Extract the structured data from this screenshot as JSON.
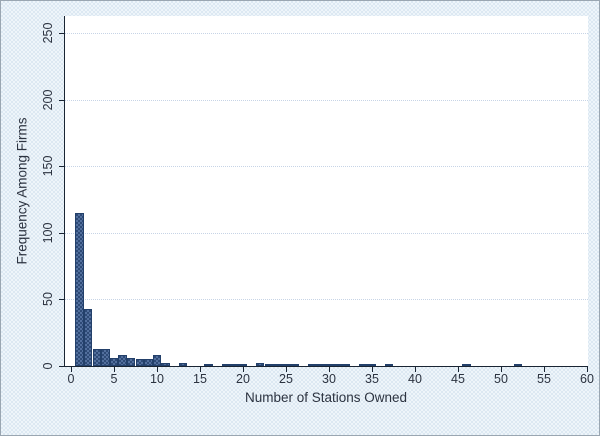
{
  "figure": {
    "outer_background_color": "#e4eef6",
    "plot_background_color": "#ffffff",
    "axis_color": "#1a2533",
    "grid_color": "#c7d4e6",
    "bar_fill_color": "#41608f",
    "bar_border_color": "#23406a",
    "text_color": "#2c3340"
  },
  "chart_data": {
    "type": "bar",
    "subtype": "histogram",
    "title": "",
    "xlabel": "Number of Stations Owned",
    "ylabel": "Frequency Among Firms",
    "xlim": [
      0,
      61
    ],
    "ylim": [
      0,
      263
    ],
    "x_ticks": [
      0,
      5,
      10,
      15,
      20,
      25,
      30,
      35,
      40,
      45,
      50,
      55,
      60
    ],
    "y_ticks": [
      0,
      50,
      100,
      150,
      200,
      250
    ],
    "grid": "horizontal-dotted",
    "legend_position": "none",
    "bin_width": 1,
    "bins": [
      {
        "x": 1,
        "count": 115
      },
      {
        "x": 2,
        "count": 43
      },
      {
        "x": 3,
        "count": 13
      },
      {
        "x": 4,
        "count": 13
      },
      {
        "x": 5,
        "count": 6
      },
      {
        "x": 6,
        "count": 8
      },
      {
        "x": 7,
        "count": 6
      },
      {
        "x": 8,
        "count": 5
      },
      {
        "x": 9,
        "count": 5
      },
      {
        "x": 10,
        "count": 8
      },
      {
        "x": 11,
        "count": 2
      },
      {
        "x": 13,
        "count": 2
      },
      {
        "x": 16,
        "count": 1
      },
      {
        "x": 18,
        "count": 1
      },
      {
        "x": 19,
        "count": 1
      },
      {
        "x": 20,
        "count": 1
      },
      {
        "x": 22,
        "count": 2
      },
      {
        "x": 23,
        "count": 1
      },
      {
        "x": 24,
        "count": 1
      },
      {
        "x": 25,
        "count": 1
      },
      {
        "x": 26,
        "count": 1
      },
      {
        "x": 28,
        "count": 1
      },
      {
        "x": 29,
        "count": 1
      },
      {
        "x": 30,
        "count": 1
      },
      {
        "x": 31,
        "count": 1
      },
      {
        "x": 32,
        "count": 1
      },
      {
        "x": 34,
        "count": 1
      },
      {
        "x": 35,
        "count": 1
      },
      {
        "x": 37,
        "count": 1
      },
      {
        "x": 46,
        "count": 1
      },
      {
        "x": 52,
        "count": 1
      }
    ]
  }
}
